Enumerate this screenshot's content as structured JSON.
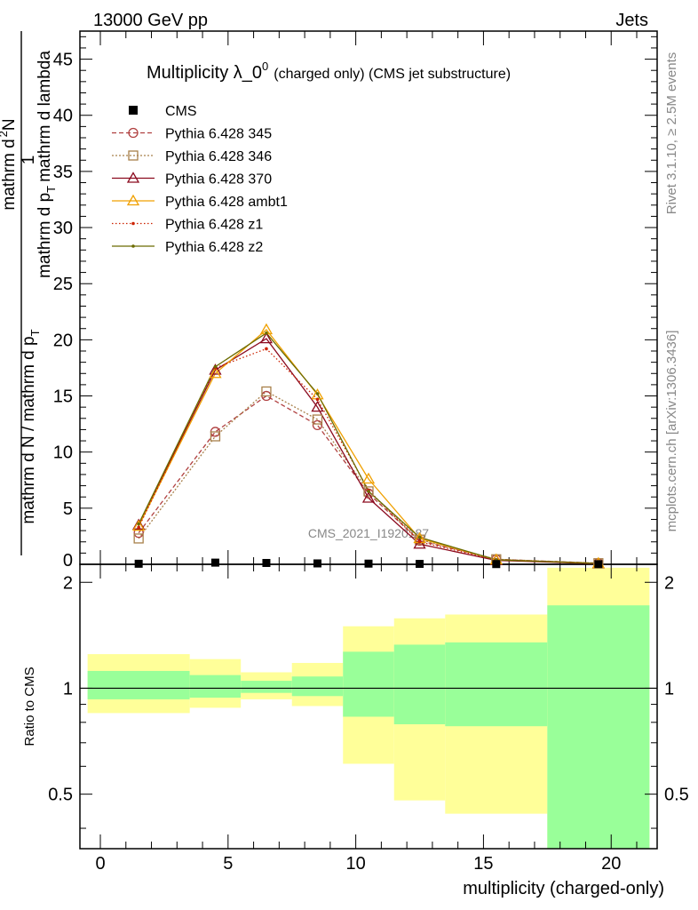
{
  "header": {
    "left": "13000 GeV pp",
    "right": "Jets"
  },
  "side_labels": {
    "rivet": "Rivet 3.1.10, ≥ 2.5M events",
    "mcplots": "mcplots.cern.ch [arXiv:1306.3436]"
  },
  "watermark": "CMS_2021_I1920187",
  "chart_data": {
    "type": "line",
    "title": "Multiplicity λ_0",
    "title_superscript": "0",
    "title_suffix": "(charged only) (CMS jet substructure)",
    "xlabel": "multiplicity (charged-only)",
    "ylabel": {
      "numerator_top": "1",
      "denominator_top": "mathrm d N / mathrm d p",
      "denominator_sub": "T",
      "numerator_bottom": "mathrm d",
      "numerator_bottom_sup": "2",
      "numerator_bottom_rest": "N",
      "denominator_bottom": "mathrm d p",
      "denominator_bottom_sub": "T",
      "denominator_bottom_rest": "mathrm d lambda"
    },
    "ratio_ylabel": "Ratio to CMS",
    "xlim": [
      -0.8,
      21.8
    ],
    "ylim": [
      0,
      47.5
    ],
    "ratio_ylim": [
      0.35,
      2.25
    ],
    "x_ticks": [
      0,
      5,
      10,
      15,
      20
    ],
    "y_ticks": [
      5,
      10,
      15,
      20,
      25,
      30,
      35,
      40,
      45
    ],
    "ratio_ticks": [
      "0.5",
      "1",
      "2"
    ],
    "legend_position": "top-left",
    "cms": {
      "name": "CMS",
      "x": [
        1.5,
        4.5,
        6.5,
        8.5,
        10.5,
        12.5,
        15.5,
        19.5
      ],
      "y": [
        0.05,
        0.15,
        0.12,
        0.08,
        0.06,
        0.04,
        0.02,
        0.01
      ]
    },
    "series": [
      {
        "name": "Pythia 6.428 345",
        "color": "#b04040",
        "dash": "5,3",
        "marker": "circle",
        "x": [
          1.5,
          4.5,
          6.5,
          8.5,
          10.5,
          12.5,
          15.5,
          19.5
        ],
        "y": [
          2.8,
          11.8,
          15.0,
          12.4,
          6.3,
          2.1,
          0.45,
          0.1
        ]
      },
      {
        "name": "Pythia 6.428 346",
        "color": "#a8804a",
        "dash": "2,2",
        "marker": "square",
        "x": [
          1.5,
          4.5,
          6.5,
          8.5,
          10.5,
          12.5,
          15.5,
          19.5
        ],
        "y": [
          2.3,
          11.4,
          15.4,
          12.9,
          6.5,
          2.2,
          0.45,
          0.1
        ]
      },
      {
        "name": "Pythia 6.428 370",
        "color": "#8b0a1f",
        "dash": "",
        "marker": "triangle",
        "x": [
          1.5,
          4.5,
          6.5,
          8.5,
          10.5,
          12.5,
          15.5,
          19.5
        ],
        "y": [
          3.5,
          17.3,
          20.1,
          14.0,
          5.9,
          1.8,
          0.35,
          0.05
        ]
      },
      {
        "name": "Pythia 6.428 ambt1",
        "color": "#f0a000",
        "dash": "",
        "marker": "triangle",
        "x": [
          1.5,
          4.5,
          6.5,
          8.5,
          10.5,
          12.5,
          15.5,
          19.5
        ],
        "y": [
          3.4,
          17.0,
          20.9,
          15.1,
          7.6,
          2.3,
          0.4,
          0.08
        ]
      },
      {
        "name": "Pythia 6.428 z1",
        "color": "#cc2200",
        "dash": "1.5,2.5",
        "marker": "dot",
        "x": [
          1.5,
          4.5,
          6.5,
          8.5,
          10.5,
          12.5,
          15.5,
          19.5
        ],
        "y": [
          3.3,
          17.5,
          19.2,
          14.7,
          6.6,
          2.0,
          0.4,
          0.08
        ]
      },
      {
        "name": "Pythia 6.428 z2",
        "color": "#6b6b00",
        "dash": "",
        "marker": "dot",
        "x": [
          1.5,
          4.5,
          6.5,
          8.5,
          10.5,
          12.5,
          15.5,
          19.5
        ],
        "y": [
          3.6,
          17.6,
          20.6,
          15.2,
          6.5,
          2.4,
          0.4,
          0.08
        ]
      }
    ],
    "ratio_bands": [
      {
        "x0": -0.5,
        "x1": 3.5,
        "yellow": [
          0.85,
          1.25
        ],
        "green": [
          0.93,
          1.12
        ]
      },
      {
        "x0": 3.5,
        "x1": 5.5,
        "yellow": [
          0.88,
          1.21
        ],
        "green": [
          0.94,
          1.09
        ]
      },
      {
        "x0": 5.5,
        "x1": 7.5,
        "yellow": [
          0.93,
          1.11
        ],
        "green": [
          0.97,
          1.05
        ]
      },
      {
        "x0": 7.5,
        "x1": 9.5,
        "yellow": [
          0.89,
          1.18
        ],
        "green": [
          0.95,
          1.08
        ]
      },
      {
        "x0": 9.5,
        "x1": 11.5,
        "yellow": [
          0.61,
          1.5
        ],
        "green": [
          0.83,
          1.27
        ]
      },
      {
        "x0": 11.5,
        "x1": 13.5,
        "yellow": [
          0.48,
          1.58
        ],
        "green": [
          0.79,
          1.33
        ]
      },
      {
        "x0": 13.5,
        "x1": 17.5,
        "yellow": [
          0.44,
          1.62
        ],
        "green": [
          0.78,
          1.35
        ]
      },
      {
        "x0": 17.5,
        "x1": 21.5,
        "yellow": [
          0.35,
          2.2
        ],
        "green": [
          0.35,
          1.72
        ]
      }
    ]
  }
}
